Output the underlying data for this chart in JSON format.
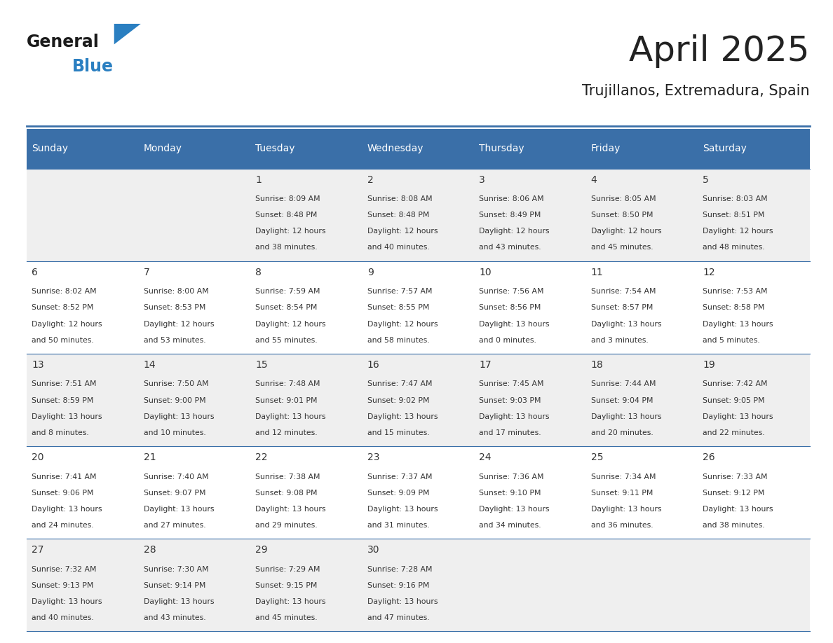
{
  "title": "April 2025",
  "subtitle": "Trujillanos, Extremadura, Spain",
  "header_bg": "#3a6fa8",
  "header_text": "#ffffff",
  "header_days": [
    "Sunday",
    "Monday",
    "Tuesday",
    "Wednesday",
    "Thursday",
    "Friday",
    "Saturday"
  ],
  "row_bg_odd": "#efefef",
  "row_bg_even": "#ffffff",
  "cell_border": "#3a6fa8",
  "text_color": "#333333",
  "title_color": "#222222",
  "logo_general_color": "#1a1a1a",
  "logo_blue_color": "#2a7fc1",
  "calendar": [
    [
      {
        "day": "",
        "sunrise": "",
        "sunset": "",
        "daylight": ""
      },
      {
        "day": "",
        "sunrise": "",
        "sunset": "",
        "daylight": ""
      },
      {
        "day": "1",
        "sunrise": "8:09 AM",
        "sunset": "8:48 PM",
        "daylight_line1": "12 hours",
        "daylight_line2": "and 38 minutes."
      },
      {
        "day": "2",
        "sunrise": "8:08 AM",
        "sunset": "8:48 PM",
        "daylight_line1": "12 hours",
        "daylight_line2": "and 40 minutes."
      },
      {
        "day": "3",
        "sunrise": "8:06 AM",
        "sunset": "8:49 PM",
        "daylight_line1": "12 hours",
        "daylight_line2": "and 43 minutes."
      },
      {
        "day": "4",
        "sunrise": "8:05 AM",
        "sunset": "8:50 PM",
        "daylight_line1": "12 hours",
        "daylight_line2": "and 45 minutes."
      },
      {
        "day": "5",
        "sunrise": "8:03 AM",
        "sunset": "8:51 PM",
        "daylight_line1": "12 hours",
        "daylight_line2": "and 48 minutes."
      }
    ],
    [
      {
        "day": "6",
        "sunrise": "8:02 AM",
        "sunset": "8:52 PM",
        "daylight_line1": "12 hours",
        "daylight_line2": "and 50 minutes."
      },
      {
        "day": "7",
        "sunrise": "8:00 AM",
        "sunset": "8:53 PM",
        "daylight_line1": "12 hours",
        "daylight_line2": "and 53 minutes."
      },
      {
        "day": "8",
        "sunrise": "7:59 AM",
        "sunset": "8:54 PM",
        "daylight_line1": "12 hours",
        "daylight_line2": "and 55 minutes."
      },
      {
        "day": "9",
        "sunrise": "7:57 AM",
        "sunset": "8:55 PM",
        "daylight_line1": "12 hours",
        "daylight_line2": "and 58 minutes."
      },
      {
        "day": "10",
        "sunrise": "7:56 AM",
        "sunset": "8:56 PM",
        "daylight_line1": "13 hours",
        "daylight_line2": "and 0 minutes."
      },
      {
        "day": "11",
        "sunrise": "7:54 AM",
        "sunset": "8:57 PM",
        "daylight_line1": "13 hours",
        "daylight_line2": "and 3 minutes."
      },
      {
        "day": "12",
        "sunrise": "7:53 AM",
        "sunset": "8:58 PM",
        "daylight_line1": "13 hours",
        "daylight_line2": "and 5 minutes."
      }
    ],
    [
      {
        "day": "13",
        "sunrise": "7:51 AM",
        "sunset": "8:59 PM",
        "daylight_line1": "13 hours",
        "daylight_line2": "and 8 minutes."
      },
      {
        "day": "14",
        "sunrise": "7:50 AM",
        "sunset": "9:00 PM",
        "daylight_line1": "13 hours",
        "daylight_line2": "and 10 minutes."
      },
      {
        "day": "15",
        "sunrise": "7:48 AM",
        "sunset": "9:01 PM",
        "daylight_line1": "13 hours",
        "daylight_line2": "and 12 minutes."
      },
      {
        "day": "16",
        "sunrise": "7:47 AM",
        "sunset": "9:02 PM",
        "daylight_line1": "13 hours",
        "daylight_line2": "and 15 minutes."
      },
      {
        "day": "17",
        "sunrise": "7:45 AM",
        "sunset": "9:03 PM",
        "daylight_line1": "13 hours",
        "daylight_line2": "and 17 minutes."
      },
      {
        "day": "18",
        "sunrise": "7:44 AM",
        "sunset": "9:04 PM",
        "daylight_line1": "13 hours",
        "daylight_line2": "and 20 minutes."
      },
      {
        "day": "19",
        "sunrise": "7:42 AM",
        "sunset": "9:05 PM",
        "daylight_line1": "13 hours",
        "daylight_line2": "and 22 minutes."
      }
    ],
    [
      {
        "day": "20",
        "sunrise": "7:41 AM",
        "sunset": "9:06 PM",
        "daylight_line1": "13 hours",
        "daylight_line2": "and 24 minutes."
      },
      {
        "day": "21",
        "sunrise": "7:40 AM",
        "sunset": "9:07 PM",
        "daylight_line1": "13 hours",
        "daylight_line2": "and 27 minutes."
      },
      {
        "day": "22",
        "sunrise": "7:38 AM",
        "sunset": "9:08 PM",
        "daylight_line1": "13 hours",
        "daylight_line2": "and 29 minutes."
      },
      {
        "day": "23",
        "sunrise": "7:37 AM",
        "sunset": "9:09 PM",
        "daylight_line1": "13 hours",
        "daylight_line2": "and 31 minutes."
      },
      {
        "day": "24",
        "sunrise": "7:36 AM",
        "sunset": "9:10 PM",
        "daylight_line1": "13 hours",
        "daylight_line2": "and 34 minutes."
      },
      {
        "day": "25",
        "sunrise": "7:34 AM",
        "sunset": "9:11 PM",
        "daylight_line1": "13 hours",
        "daylight_line2": "and 36 minutes."
      },
      {
        "day": "26",
        "sunrise": "7:33 AM",
        "sunset": "9:12 PM",
        "daylight_line1": "13 hours",
        "daylight_line2": "and 38 minutes."
      }
    ],
    [
      {
        "day": "27",
        "sunrise": "7:32 AM",
        "sunset": "9:13 PM",
        "daylight_line1": "13 hours",
        "daylight_line2": "and 40 minutes."
      },
      {
        "day": "28",
        "sunrise": "7:30 AM",
        "sunset": "9:14 PM",
        "daylight_line1": "13 hours",
        "daylight_line2": "and 43 minutes."
      },
      {
        "day": "29",
        "sunrise": "7:29 AM",
        "sunset": "9:15 PM",
        "daylight_line1": "13 hours",
        "daylight_line2": "and 45 minutes."
      },
      {
        "day": "30",
        "sunrise": "7:28 AM",
        "sunset": "9:16 PM",
        "daylight_line1": "13 hours",
        "daylight_line2": "and 47 minutes."
      },
      {
        "day": "",
        "sunrise": "",
        "sunset": "",
        "daylight_line1": "",
        "daylight_line2": ""
      },
      {
        "day": "",
        "sunrise": "",
        "sunset": "",
        "daylight_line1": "",
        "daylight_line2": ""
      },
      {
        "day": "",
        "sunrise": "",
        "sunset": "",
        "daylight_line1": "",
        "daylight_line2": ""
      }
    ]
  ]
}
